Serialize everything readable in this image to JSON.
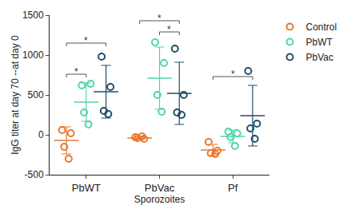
{
  "chart_data": {
    "type": "scatter",
    "x_label": "Sporozoites",
    "y_label": "IgG titer at day 70 --at day 0",
    "categories": [
      "PbWT",
      "PbVac",
      "Pf"
    ],
    "ylim": [
      -500,
      1500
    ],
    "yticks": [
      -500,
      0,
      500,
      1000,
      1500
    ],
    "grid": false,
    "legend": "right",
    "series": [
      {
        "name": "Control",
        "color": "#e8782e",
        "marker": "circle-open",
        "values": [
          [
            60,
            20,
            -150,
            -300
          ],
          [
            -30,
            -50,
            -40,
            -20
          ],
          [
            -90,
            -200,
            -230,
            -240
          ]
        ],
        "means": [
          -70,
          -40,
          -190
        ],
        "errors": [
          170,
          15,
          70
        ]
      },
      {
        "name": "PbWT",
        "color": "#4fd6a8",
        "marker": "circle-open",
        "values": [
          [
            620,
            640,
            280,
            130
          ],
          [
            1160,
            900,
            500,
            290
          ],
          [
            40,
            20,
            -30,
            -140
          ]
        ],
        "means": [
          410,
          710,
          -20
        ],
        "errors": [
          240,
          390,
          80
        ]
      },
      {
        "name": "PbVac",
        "color": "#1f4f6a",
        "marker": "circle-open",
        "values": [
          [
            980,
            600,
            300,
            260
          ],
          [
            1080,
            500,
            280,
            250
          ],
          [
            800,
            140,
            80,
            -50
          ]
        ],
        "means": [
          540,
          520,
          240
        ],
        "errors": [
          330,
          390,
          380
        ]
      }
    ],
    "annotations": [
      {
        "category": "PbWT",
        "from": "Control",
        "to": "PbWT",
        "y": 760,
        "label": "*"
      },
      {
        "category": "PbWT",
        "from": "Control",
        "to": "PbVac",
        "y": 1150,
        "label": "*"
      },
      {
        "category": "PbVac",
        "from": "Control",
        "to": "PbVac",
        "y": 1430,
        "label": "*"
      },
      {
        "category": "PbVac",
        "from": "PbWT",
        "to": "PbVac",
        "y": 1290,
        "label": "*"
      },
      {
        "category": "Pf",
        "from": "Control",
        "to": "PbVac",
        "y": 730,
        "label": "*"
      }
    ]
  }
}
